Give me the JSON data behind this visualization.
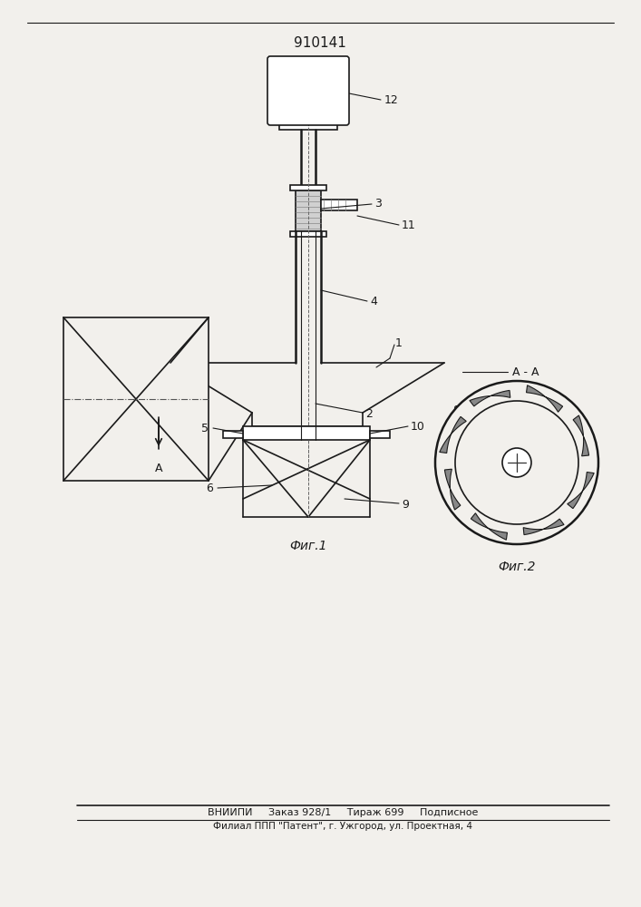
{
  "title": "910141",
  "fig1_label": "Фиг.1",
  "fig2_label": "Фиг.2",
  "section_label": "А - А",
  "bottom_line1": "ВНИИПИ     Заказ 928/1     Тираж 699     Подписное",
  "bottom_line2": "Филиал ППП \"Патент\", г. Ужгород, ул. Проектная, 4",
  "bg_color": "#f2f0ec",
  "line_color": "#1a1a1a"
}
